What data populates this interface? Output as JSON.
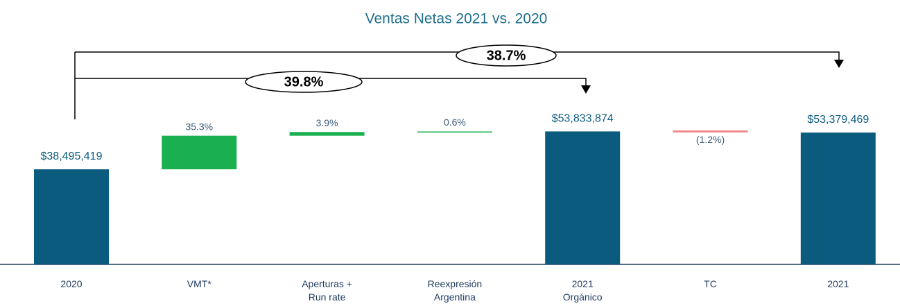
{
  "chart_data": {
    "type": "waterfall",
    "title": "Ventas Netas 2021 vs. 2020",
    "categories": [
      "2020",
      "VMT*",
      "Aperturas +\nRun rate",
      "Reexpresión\nArgentina",
      "2021\nOrgánico",
      "TC",
      "2021"
    ],
    "kinds": [
      "total",
      "delta",
      "delta",
      "delta",
      "total",
      "delta",
      "total"
    ],
    "values": [
      38495419,
      35.3,
      3.9,
      0.6,
      53833874,
      -1.2,
      53379469
    ],
    "value_labels": [
      "$38,495,419",
      "35.3%",
      "3.9%",
      "0.6%",
      "$53,833,874",
      "(1.2%)",
      "$53,379,469"
    ],
    "colors": {
      "total": "#0b5b7f",
      "increase": "#1bb04f",
      "decrease": "#f08a8a"
    },
    "annotations": [
      {
        "value": 38.7,
        "label": "38.7%"
      },
      {
        "value": 39.8,
        "label": "39.8%"
      }
    ]
  }
}
